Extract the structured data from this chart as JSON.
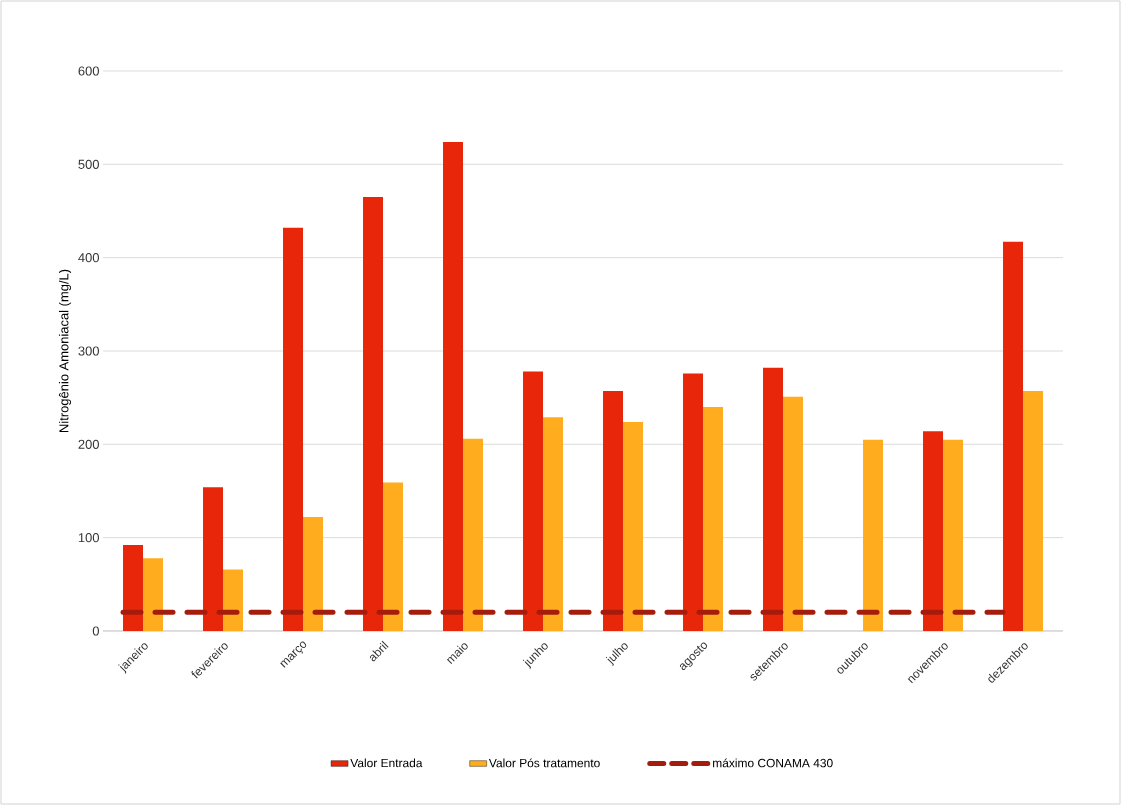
{
  "chart_data": {
    "type": "bar",
    "ylabel": "Nitrogênio Amoniacal (mg/L)",
    "categories": [
      "janeiro",
      "fevereiro",
      "março",
      "abril",
      "maio",
      "junho",
      "julho",
      "agosto",
      "setembro",
      "outubro",
      "novembro",
      "dezembro"
    ],
    "series": [
      {
        "name": "Valor Entrada",
        "color": "#e8270a",
        "values": [
          92,
          154,
          432,
          465,
          524,
          278,
          257,
          276,
          282,
          null,
          214,
          417
        ]
      },
      {
        "name": "Valor Pós tratamento",
        "color": "#ffad1f",
        "values": [
          78,
          66,
          122,
          159,
          206,
          229,
          224,
          240,
          251,
          205,
          205,
          257
        ]
      }
    ],
    "ref_lines": [
      {
        "axis": "y",
        "value": 20,
        "label": "máximo CONAMA 430",
        "color": "#a51c0c",
        "line_style": "dashed"
      }
    ],
    "ylim": [
      0,
      600
    ],
    "yticks": [
      0,
      100,
      200,
      300,
      400,
      500,
      600
    ],
    "grid": "y",
    "legend": "bottom"
  }
}
